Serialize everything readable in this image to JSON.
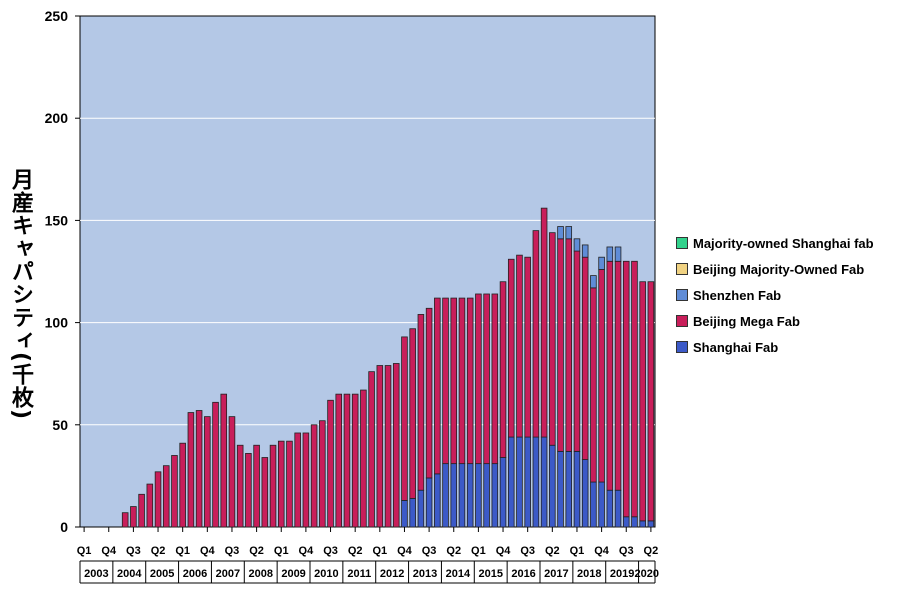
{
  "chart_data": {
    "type": "bar",
    "stacked": true,
    "ylabel": "月産キャパシティ(千枚)",
    "xlabel": "",
    "ylim": [
      0,
      250
    ],
    "yticks": [
      0,
      50,
      100,
      150,
      200,
      250
    ],
    "grid": true,
    "legend_position": "right",
    "plot_background": "#b4c8e6",
    "quarter_tick_labels": [
      "Q1",
      "Q4",
      "Q3",
      "Q2",
      "Q1",
      "Q4",
      "Q3",
      "Q2",
      "Q1",
      "Q4",
      "Q3",
      "Q2",
      "Q1",
      "Q4",
      "Q3",
      "Q2",
      "Q1",
      "Q4",
      "Q3",
      "Q2",
      "Q1",
      "Q4",
      "Q3",
      "Q2"
    ],
    "years": [
      "2003",
      "2004",
      "2005",
      "2006",
      "2007",
      "2008",
      "2009",
      "2010",
      "2011",
      "2012",
      "2013",
      "2014",
      "2015",
      "2016",
      "2017",
      "2018",
      "2019",
      "2020"
    ],
    "categories": [
      "2003 Q1",
      "2003 Q2",
      "2003 Q3",
      "2003 Q4",
      "2004 Q1",
      "2004 Q2",
      "2004 Q3",
      "2004 Q4",
      "2005 Q1",
      "2005 Q2",
      "2005 Q3",
      "2005 Q4",
      "2006 Q1",
      "2006 Q2",
      "2006 Q3",
      "2006 Q4",
      "2007 Q1",
      "2007 Q2",
      "2007 Q3",
      "2007 Q4",
      "2008 Q1",
      "2008 Q2",
      "2008 Q3",
      "2008 Q4",
      "2009 Q1",
      "2009 Q2",
      "2009 Q3",
      "2009 Q4",
      "2010 Q1",
      "2010 Q2",
      "2010 Q3",
      "2010 Q4",
      "2011 Q1",
      "2011 Q2",
      "2011 Q3",
      "2011 Q4",
      "2012 Q1",
      "2012 Q2",
      "2012 Q3",
      "2012 Q4",
      "2013 Q1",
      "2013 Q2",
      "2013 Q3",
      "2013 Q4",
      "2014 Q1",
      "2014 Q2",
      "2014 Q3",
      "2014 Q4",
      "2015 Q1",
      "2015 Q2",
      "2015 Q3",
      "2015 Q4",
      "2016 Q1",
      "2016 Q2",
      "2016 Q3",
      "2016 Q4",
      "2017 Q1",
      "2017 Q2",
      "2017 Q3",
      "2017 Q4",
      "2018 Q1",
      "2018 Q2",
      "2018 Q3",
      "2018 Q4",
      "2019 Q1",
      "2019 Q2",
      "2019 Q3",
      "2019 Q4",
      "2020 Q1",
      "2020 Q2"
    ],
    "series": [
      {
        "name": "Shanghai Fab",
        "color": "#3c5ac8",
        "values": [
          0,
          0,
          0,
          0,
          0,
          0,
          0,
          0,
          0,
          0,
          0,
          0,
          0,
          0,
          0,
          0,
          0,
          0,
          0,
          0,
          0,
          0,
          0,
          0,
          0,
          0,
          0,
          0,
          0,
          0,
          0,
          0,
          0,
          0,
          0,
          0,
          0,
          0,
          0,
          13,
          14,
          18,
          24,
          26,
          31,
          31,
          31,
          31,
          31,
          31,
          31,
          34,
          44,
          44,
          44,
          44,
          44,
          40,
          37,
          37,
          37,
          33,
          22,
          22,
          18,
          18,
          5,
          5,
          3,
          3
        ]
      },
      {
        "name": "Beijing Mega Fab",
        "color": "#c81e5a",
        "values": [
          0,
          0,
          0,
          0,
          0,
          7,
          10,
          16,
          21,
          27,
          30,
          35,
          41,
          56,
          57,
          54,
          61,
          65,
          54,
          40,
          36,
          40,
          34,
          40,
          42,
          42,
          46,
          46,
          50,
          52,
          62,
          65,
          65,
          65,
          67,
          76,
          79,
          79,
          80,
          80,
          83,
          86,
          83,
          86,
          81,
          81,
          81,
          81,
          83,
          83,
          83,
          86,
          87,
          89,
          88,
          101,
          112,
          104,
          104,
          104,
          98,
          99,
          95,
          104,
          112,
          112,
          125,
          125,
          117,
          117
        ]
      },
      {
        "name": "Shenzhen Fab",
        "color": "#5f8cd7",
        "values": [
          0,
          0,
          0,
          0,
          0,
          0,
          0,
          0,
          0,
          0,
          0,
          0,
          0,
          0,
          0,
          0,
          0,
          0,
          0,
          0,
          0,
          0,
          0,
          0,
          0,
          0,
          0,
          0,
          0,
          0,
          0,
          0,
          0,
          0,
          0,
          0,
          0,
          0,
          0,
          0,
          0,
          0,
          0,
          0,
          0,
          0,
          0,
          0,
          0,
          0,
          0,
          0,
          0,
          0,
          0,
          0,
          0,
          0,
          6,
          6,
          6,
          6,
          6,
          6,
          7,
          7,
          0,
          0,
          0,
          0
        ]
      },
      {
        "name": "Beijing Majority-Owned Fab",
        "color": "#f0d282",
        "values": [
          0,
          0,
          0,
          0,
          0,
          0,
          0,
          0,
          0,
          0,
          0,
          0,
          0,
          0,
          0,
          0,
          0,
          0,
          0,
          0,
          0,
          0,
          0,
          0,
          0,
          0,
          0,
          0,
          0,
          0,
          0,
          0,
          0,
          0,
          0,
          0,
          0,
          0,
          0,
          0,
          0,
          0,
          0,
          0,
          0,
          0,
          0,
          0,
          0,
          0,
          0,
          0,
          0,
          0,
          0,
          0,
          0,
          0,
          0,
          0,
          0,
          0,
          0,
          0,
          0,
          0,
          0,
          0,
          0,
          0
        ]
      },
      {
        "name": "Majority-owned Shanghai fab",
        "color": "#32d28c",
        "values": [
          0,
          0,
          0,
          0,
          0,
          0,
          0,
          0,
          0,
          0,
          0,
          0,
          0,
          0,
          0,
          0,
          0,
          0,
          0,
          0,
          0,
          0,
          0,
          0,
          0,
          0,
          0,
          0,
          0,
          0,
          0,
          0,
          0,
          0,
          0,
          0,
          0,
          0,
          0,
          0,
          0,
          0,
          0,
          0,
          0,
          0,
          0,
          0,
          0,
          0,
          0,
          0,
          0,
          0,
          0,
          0,
          0,
          0,
          0,
          0,
          0,
          0,
          0,
          0,
          0,
          0,
          0,
          0,
          0,
          0
        ]
      }
    ],
    "legend_order": [
      "Majority-owned Shanghai fab",
      "Beijing Majority-Owned Fab",
      "Shenzhen Fab",
      "Beijing Mega Fab",
      "Shanghai Fab"
    ]
  }
}
